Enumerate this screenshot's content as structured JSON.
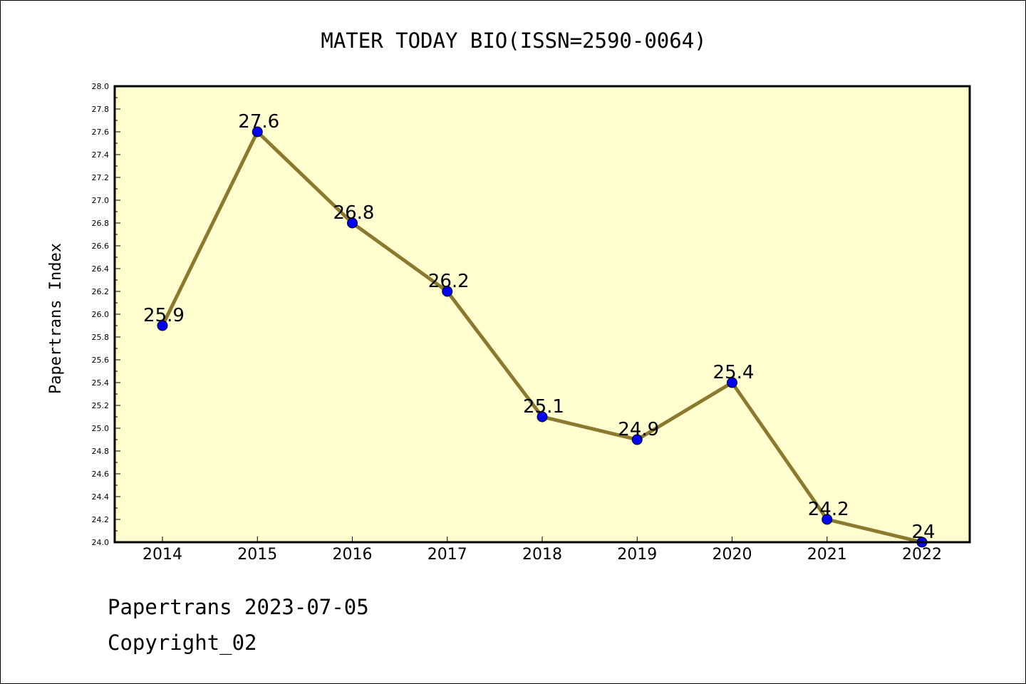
{
  "chart_data": {
    "type": "line",
    "title": "MATER TODAY BIO(ISSN=2590-0064)",
    "xlabel": "",
    "ylabel": "Papertrans Index",
    "categories": [
      "2014",
      "2015",
      "2016",
      "2017",
      "2018",
      "2019",
      "2020",
      "2021",
      "2022"
    ],
    "values": [
      25.9,
      27.6,
      26.8,
      26.2,
      25.1,
      24.9,
      25.4,
      24.2,
      24.0
    ],
    "data_labels": [
      "25.9",
      "27.6",
      "26.8",
      "26.2",
      "25.1",
      "24.9",
      "25.4",
      "24.2",
      "24"
    ],
    "ylim": [
      24.0,
      28.0
    ],
    "yticks": [
      "24.0",
      "24.2",
      "24.4",
      "24.6",
      "24.8",
      "25.0",
      "25.2",
      "25.4",
      "25.6",
      "25.8",
      "26.0",
      "26.2",
      "26.4",
      "26.6",
      "26.8",
      "27.0",
      "27.2",
      "27.4",
      "27.6",
      "27.8",
      "28.0"
    ],
    "grid": false,
    "colors": {
      "plot_background": "#ffffd0",
      "line": "#8b7a2e",
      "marker": "#0000ff"
    }
  },
  "footer": {
    "date_line": "Papertrans 2023-07-05",
    "copyright": "Copyright_02"
  }
}
